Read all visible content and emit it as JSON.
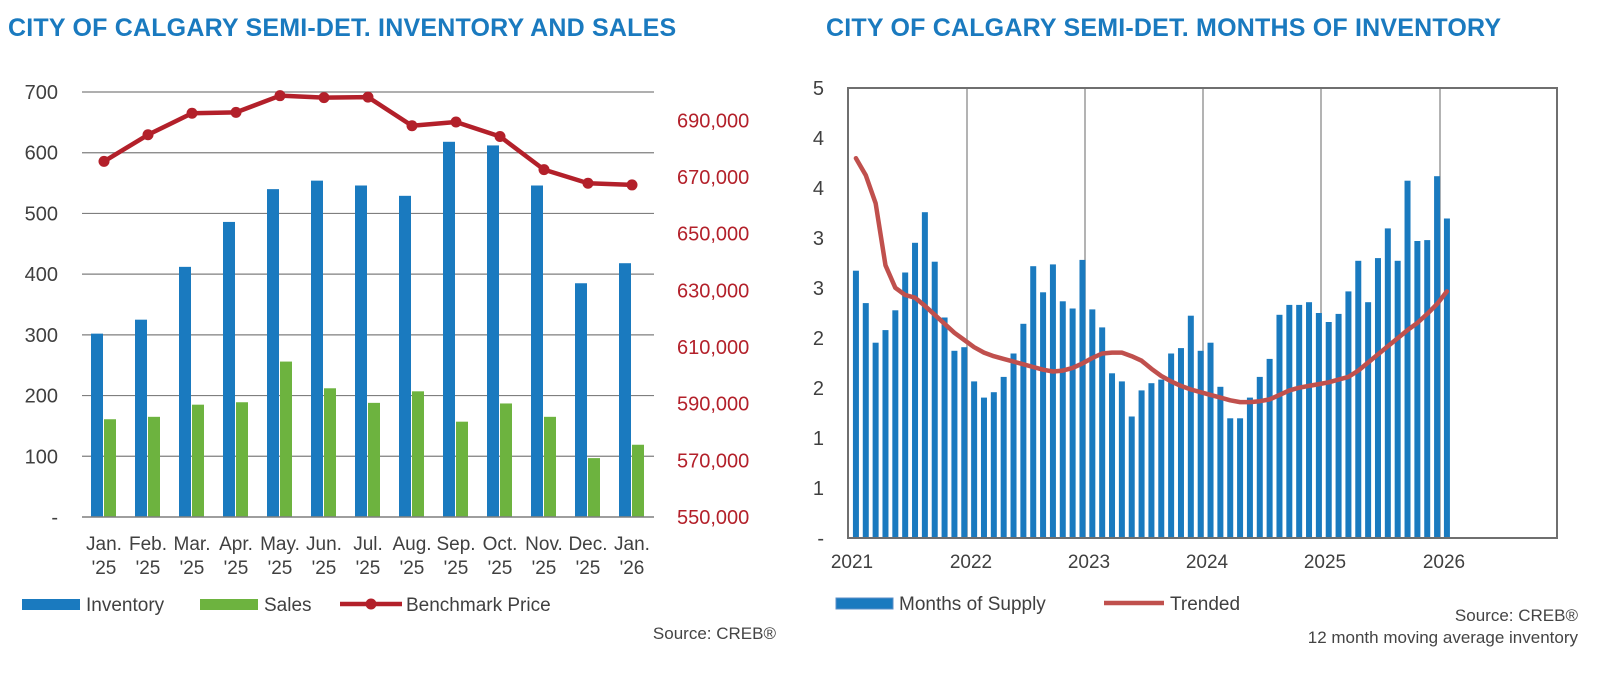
{
  "colors": {
    "title": "#1a7abf",
    "inventory": "#1a7abf",
    "sales": "#6db33f",
    "price": "#b3202a",
    "trended": "#c0504d",
    "axis_text": "#404040",
    "grid": "#7f7f7f"
  },
  "chart_data": [
    {
      "type": "bar",
      "title": "CITY OF CALGARY SEMI-DET. INVENTORY AND SALES",
      "categories": [
        "Jan.\n'25",
        "Feb.\n'25",
        "Mar.\n'25",
        "Apr.\n'25",
        "May.\n'25",
        "Jun.\n'25",
        "Jul.\n'25",
        "Aug.\n'25",
        "Sep.\n'25",
        "Oct.\n'25",
        "Nov.\n'25",
        "Dec.\n'25",
        "Jan.\n'26"
      ],
      "series": [
        {
          "name": "Inventory",
          "type": "bar",
          "axis": "left",
          "values": [
            302,
            325,
            412,
            486,
            540,
            554,
            546,
            529,
            618,
            612,
            546,
            385,
            418
          ]
        },
        {
          "name": "Sales",
          "type": "bar",
          "axis": "left",
          "values": [
            161,
            165,
            185,
            189,
            256,
            212,
            188,
            207,
            157,
            187,
            165,
            97,
            119
          ]
        },
        {
          "name": "Benchmark Price",
          "type": "line",
          "axis": "right",
          "values": [
            675500,
            684900,
            692500,
            692800,
            698700,
            698000,
            698200,
            688100,
            689400,
            684300,
            672600,
            667800,
            667200
          ]
        }
      ],
      "ylim_left": [
        0,
        700
      ],
      "yticks_left": [
        "-",
        "100",
        "200",
        "300",
        "400",
        "500",
        "600",
        "700"
      ],
      "ylim_right": [
        550000,
        700000
      ],
      "yticks_right": [
        "550,000",
        "570,000",
        "590,000",
        "610,000",
        "630,000",
        "650,000",
        "670,000",
        "690,000"
      ],
      "legend": [
        "Inventory",
        "Sales",
        "Benchmark Price"
      ],
      "legend_position": "bottom",
      "source": "Source: CREB®"
    },
    {
      "type": "bar",
      "title": "CITY OF CALGARY SEMI-DET. MONTHS OF INVENTORY",
      "x_labels": [
        "2021",
        "2022",
        "2023",
        "2024",
        "2025",
        "2026"
      ],
      "series": [
        {
          "name": "Months of Supply",
          "type": "bar",
          "values": [
            2.97,
            2.61,
            2.17,
            2.31,
            2.53,
            2.95,
            3.28,
            3.62,
            3.07,
            2.45,
            2.08,
            2.12,
            1.74,
            1.56,
            1.62,
            1.79,
            2.05,
            2.38,
            3.02,
            2.73,
            3.04,
            2.63,
            2.55,
            3.09,
            2.54,
            2.34,
            1.83,
            1.74,
            1.35,
            1.64,
            1.72,
            1.76,
            2.05,
            2.11,
            2.47,
            2.08,
            2.17,
            1.68,
            1.33,
            1.33,
            1.56,
            1.79,
            1.99,
            2.48,
            2.59,
            2.59,
            2.62,
            2.5,
            2.4,
            2.49,
            2.74,
            3.08,
            2.62,
            3.11,
            3.44,
            3.08,
            3.97,
            3.3,
            3.31,
            4.02,
            3.55
          ]
        },
        {
          "name": "Trended",
          "type": "line",
          "values": [
            4.22,
            4.03,
            3.72,
            3.03,
            2.78,
            2.7,
            2.67,
            2.58,
            2.48,
            2.38,
            2.28,
            2.2,
            2.12,
            2.06,
            2.02,
            1.99,
            1.96,
            1.93,
            1.9,
            1.87,
            1.85,
            1.86,
            1.89,
            1.94,
            2.0,
            2.05,
            2.06,
            2.06,
            2.02,
            1.97,
            1.88,
            1.8,
            1.74,
            1.69,
            1.65,
            1.62,
            1.59,
            1.56,
            1.53,
            1.51,
            1.51,
            1.52,
            1.54,
            1.59,
            1.64,
            1.67,
            1.69,
            1.71,
            1.73,
            1.76,
            1.79,
            1.86,
            1.95,
            2.04,
            2.13,
            2.22,
            2.31,
            2.39,
            2.49,
            2.6,
            2.74
          ]
        }
      ],
      "ylim": [
        0,
        5
      ],
      "yticks": [
        "-",
        "1",
        "1",
        "2",
        "2",
        "3",
        "3",
        "4",
        "4",
        "5"
      ],
      "legend": [
        "Months of Supply",
        "Trended"
      ],
      "legend_position": "bottom",
      "source": "Source: CREB®",
      "note": "12 month moving average inventory"
    }
  ]
}
